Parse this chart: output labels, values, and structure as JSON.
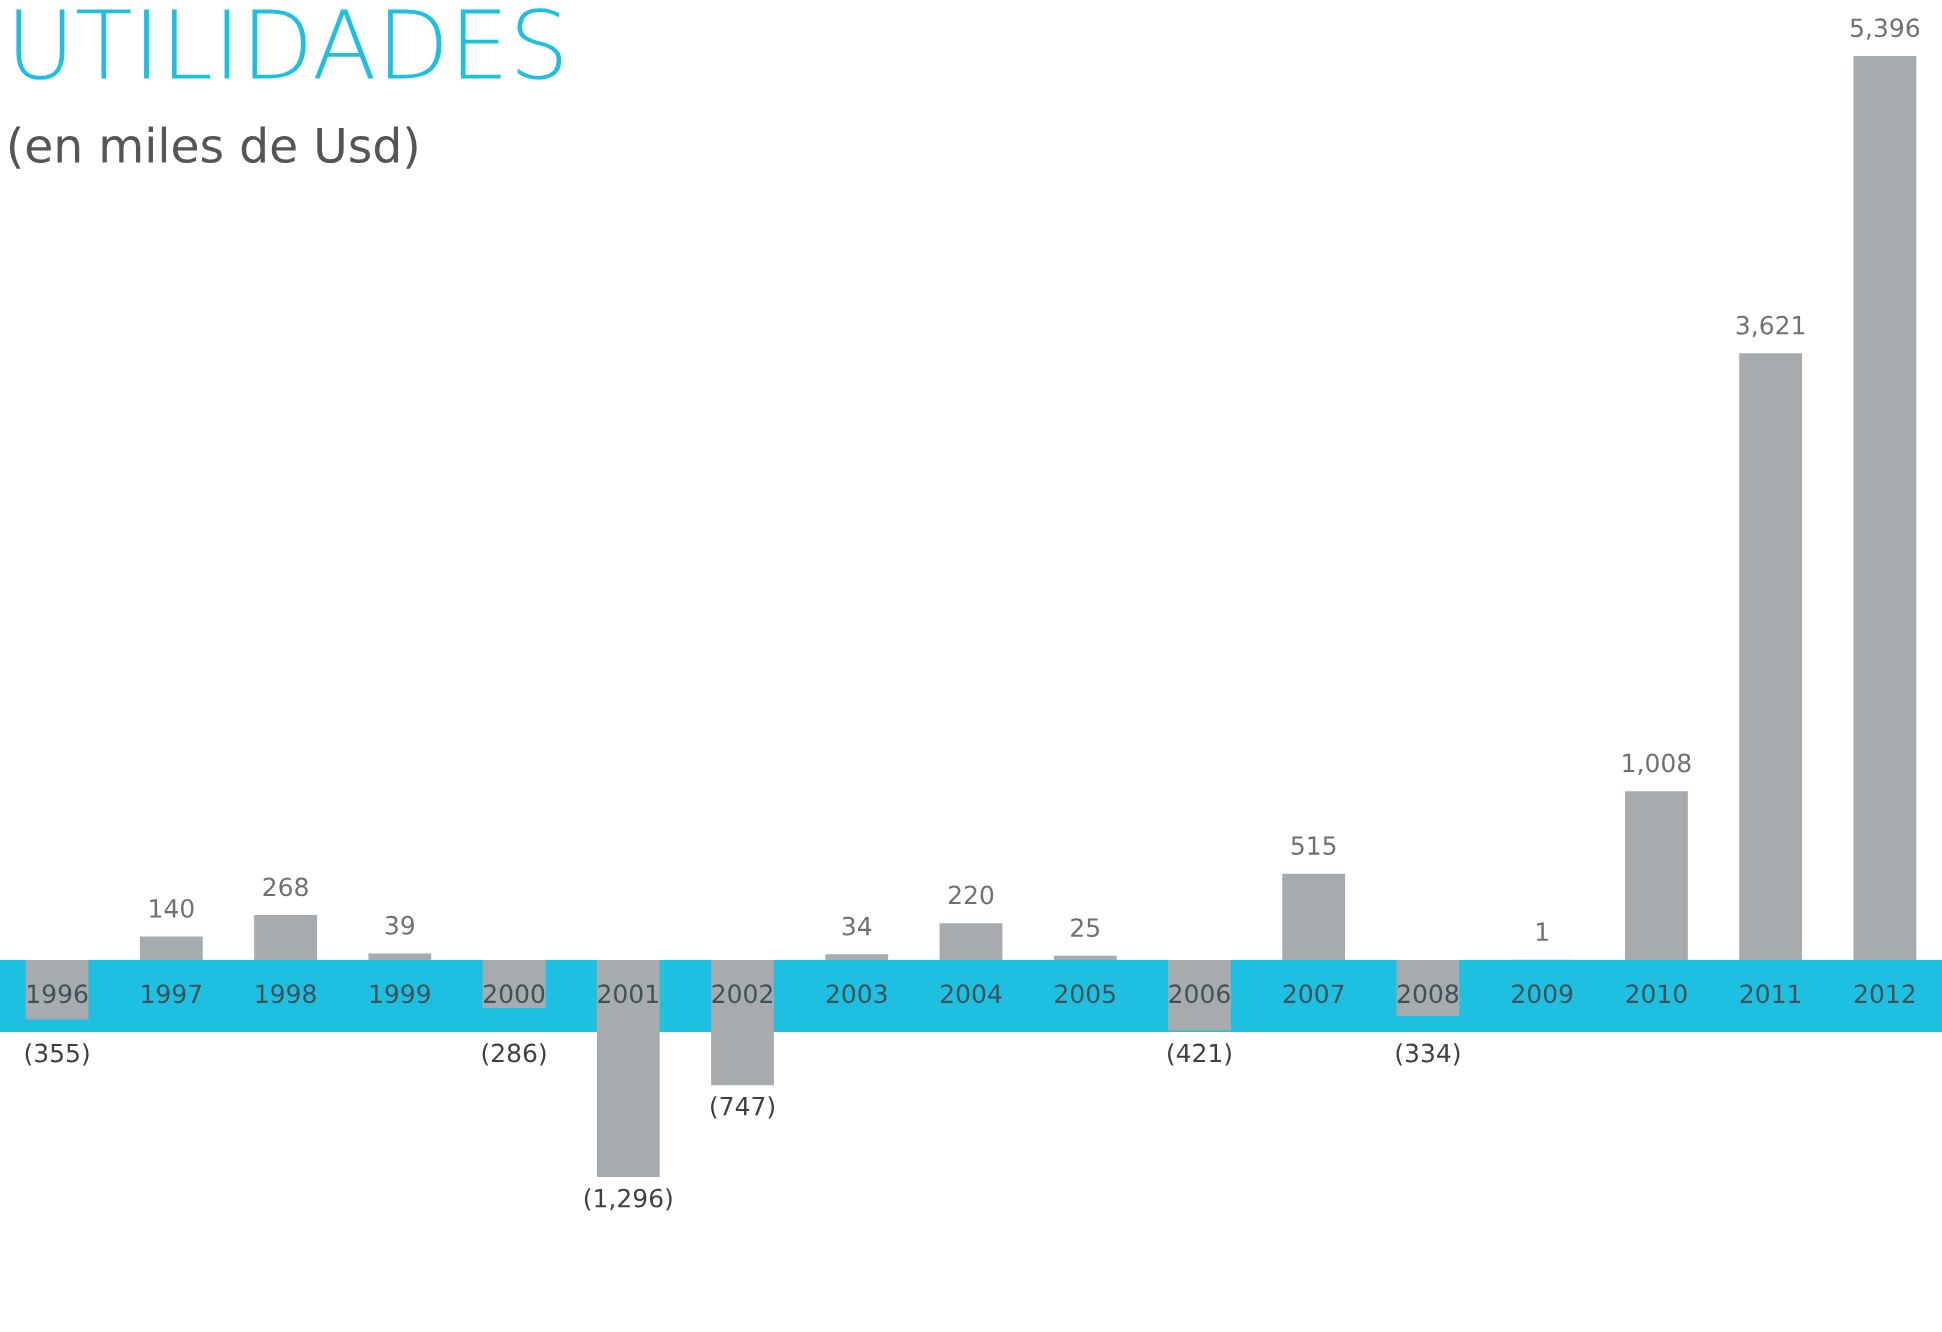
{
  "chart_data": {
    "type": "bar",
    "title": "UTILIDADES",
    "subtitle": "(en miles de Usd)",
    "categories": [
      "1996",
      "1997",
      "1998",
      "1999",
      "2000",
      "2001",
      "2002",
      "2003",
      "2004",
      "2005",
      "2006",
      "2007",
      "2008",
      "2009",
      "2010",
      "2011",
      "2012"
    ],
    "values": [
      -355,
      140,
      268,
      39,
      -286,
      -1296,
      -747,
      34,
      220,
      25,
      -421,
      515,
      -334,
      1,
      1008,
      3621,
      5396
    ],
    "value_labels": [
      "(355)",
      "140",
      "268",
      "39",
      "(286)",
      "(1,296)",
      "(747)",
      "34",
      "220",
      "25",
      "(421)",
      "515",
      "(334)",
      "1",
      "1,008",
      "3,621",
      "5,396"
    ],
    "color": "#a7abad",
    "tick_labels": "x"
  }
}
